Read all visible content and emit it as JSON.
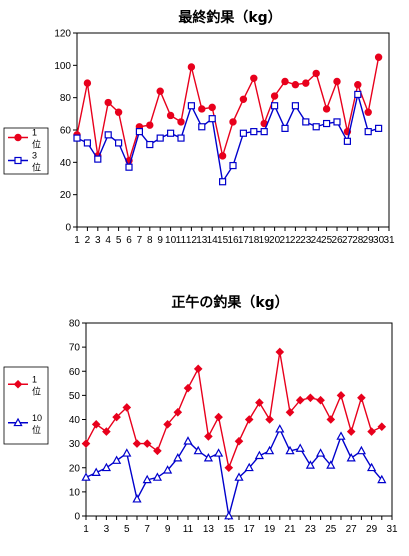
{
  "chart_data": [
    {
      "type": "line",
      "title": "最終釣果（kg）",
      "x_ticks": [
        1,
        2,
        3,
        4,
        5,
        6,
        7,
        8,
        9,
        10,
        11,
        12,
        13,
        14,
        15,
        16,
        17,
        18,
        19,
        20,
        21,
        22,
        23,
        24,
        25,
        26,
        27,
        28,
        29,
        30,
        31
      ],
      "y_ticks": [
        0,
        20,
        40,
        60,
        80,
        100,
        120
      ],
      "xlim": [
        1,
        31
      ],
      "ylim": [
        0,
        120
      ],
      "grid": true,
      "legend_position": "left",
      "x": [
        1,
        2,
        3,
        4,
        5,
        6,
        7,
        8,
        9,
        10,
        11,
        12,
        13,
        14,
        15,
        16,
        17,
        18,
        19,
        20,
        21,
        22,
        23,
        24,
        25,
        26,
        27,
        28,
        29,
        30
      ],
      "series": [
        {
          "name": "1位",
          "color": "#e8001c",
          "marker": "circle-filled",
          "values": [
            57,
            89,
            44,
            77,
            71,
            41,
            62,
            63,
            84,
            69,
            65,
            99,
            73,
            74,
            44,
            65,
            79,
            92,
            64,
            81,
            90,
            88,
            89,
            95,
            73,
            90,
            59,
            88,
            71,
            105
          ]
        },
        {
          "name": "3位",
          "color": "#0000cc",
          "marker": "square-open",
          "values": [
            55,
            52,
            42,
            57,
            52,
            37,
            59,
            51,
            55,
            58,
            55,
            75,
            62,
            67,
            28,
            38,
            58,
            59,
            59,
            75,
            61,
            75,
            65,
            62,
            64,
            65,
            53,
            82,
            59,
            61
          ]
        }
      ]
    },
    {
      "type": "line",
      "title": "正午の釣果（kg）",
      "x_ticks": [
        1,
        3,
        5,
        7,
        9,
        11,
        13,
        15,
        17,
        19,
        21,
        23,
        25,
        27,
        29,
        31
      ],
      "y_ticks": [
        0,
        10,
        20,
        30,
        40,
        50,
        60,
        70,
        80
      ],
      "xlim": [
        1,
        31
      ],
      "ylim": [
        0,
        80
      ],
      "grid": true,
      "legend_position": "left",
      "x": [
        1,
        2,
        3,
        4,
        5,
        6,
        7,
        8,
        9,
        10,
        11,
        12,
        13,
        14,
        15,
        16,
        17,
        18,
        19,
        20,
        21,
        22,
        23,
        24,
        25,
        26,
        27,
        28,
        29,
        30
      ],
      "series": [
        {
          "name": "1位",
          "color": "#e8001c",
          "marker": "diamond-filled",
          "values": [
            30,
            38,
            35,
            41,
            45,
            30,
            30,
            27,
            38,
            43,
            53,
            61,
            33,
            41,
            20,
            31,
            40,
            47,
            40,
            68,
            43,
            48,
            49,
            48,
            40,
            50,
            35,
            49,
            35,
            37
          ]
        },
        {
          "name": "10位",
          "color": "#0000cc",
          "marker": "triangle-open",
          "values": [
            16,
            18,
            20,
            23,
            26,
            7,
            15,
            16,
            19,
            24,
            31,
            27,
            24,
            26,
            0,
            16,
            20,
            25,
            27,
            36,
            27,
            28,
            21,
            26,
            21,
            33,
            24,
            27,
            20,
            15
          ]
        }
      ]
    }
  ]
}
